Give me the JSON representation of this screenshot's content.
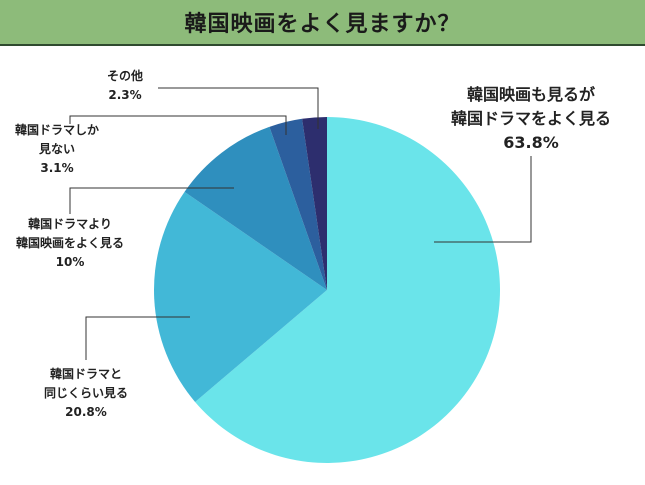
{
  "header": {
    "title": "韓国映画をよく見ますか？"
  },
  "chart_data": {
    "type": "pie",
    "start_angle_deg": 0,
    "direction": "clockwise",
    "slices": [
      {
        "label": [
          "韓国映画も見るが",
          "韓国ドラマをよく見る"
        ],
        "pct": "63.8%",
        "value": 63.8,
        "color": "#6ae4ea"
      },
      {
        "label": [
          "韓国ドラマと",
          "同じくらい見る"
        ],
        "pct": "20.8%",
        "value": 20.8,
        "color": "#42b8d7"
      },
      {
        "label": [
          "韓国ドラマより",
          "韓国映画をよく見る"
        ],
        "pct": "10%",
        "value": 10.0,
        "color": "#2f8fbe"
      },
      {
        "label": [
          "韓国ドラマしか",
          "見ない"
        ],
        "pct": "3.1%",
        "value": 3.1,
        "color": "#2c5f9e"
      },
      {
        "label": [
          "その他"
        ],
        "pct": "2.3%",
        "value": 2.3,
        "color": "#2d2e6e"
      }
    ]
  }
}
